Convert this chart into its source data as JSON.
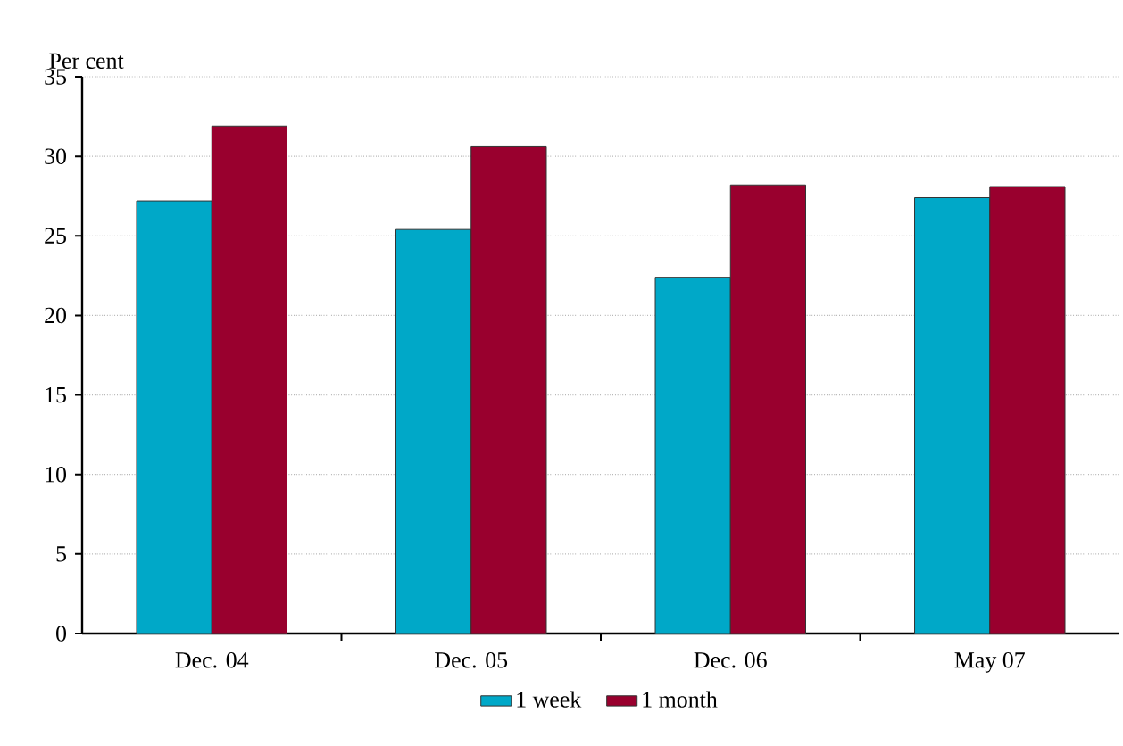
{
  "chart_data": {
    "type": "bar",
    "ylabel": "Per cent",
    "categories": [
      "Dec. 04",
      "Dec. 05",
      "Dec. 06",
      "May 07"
    ],
    "series": [
      {
        "name": "1 week",
        "color": "#00a8c8",
        "values": [
          27.2,
          25.4,
          22.4,
          27.4
        ]
      },
      {
        "name": "1 month",
        "color": "#99002e",
        "values": [
          31.9,
          30.6,
          28.2,
          28.1
        ]
      }
    ],
    "ylim": [
      0,
      35
    ],
    "yticks": [
      0,
      5,
      10,
      15,
      20,
      25,
      30,
      35
    ],
    "grid": "y",
    "legend": "bottom"
  }
}
